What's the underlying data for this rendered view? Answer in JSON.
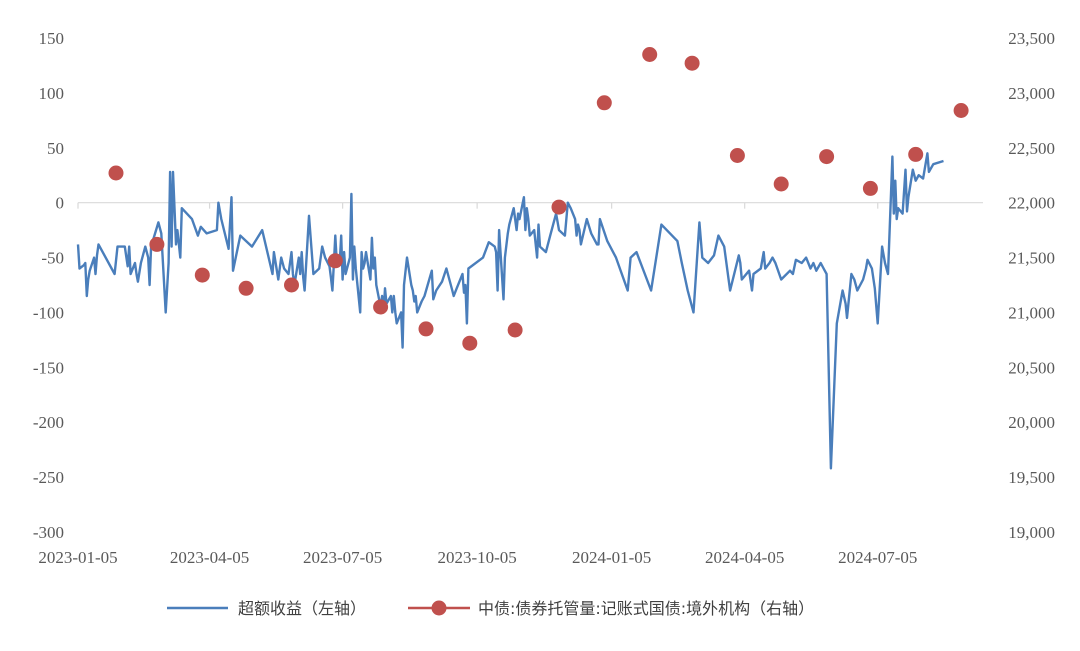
{
  "chart_data": {
    "type": "line",
    "title": "",
    "xlabel": "",
    "ylabel": "",
    "y2label": "",
    "grid": false,
    "legend_position": "bottom",
    "x_range": [
      "2023-01-05",
      "2024-09-15"
    ],
    "x_tick_labels": [
      "2023-01-05",
      "2023-04-05",
      "2023-07-05",
      "2023-10-05",
      "2024-01-05",
      "2024-04-05",
      "2024-07-05"
    ],
    "y_left": {
      "range": [
        -300,
        150
      ],
      "ticks": [
        150,
        100,
        50,
        0,
        -50,
        -100,
        -150,
        -200,
        -250,
        -300
      ],
      "tick_labels": [
        "150",
        "100",
        "50",
        "0",
        "-50",
        "-100",
        "-150",
        "-200",
        "-250",
        "-300"
      ]
    },
    "y_right": {
      "range": [
        19000,
        23500
      ],
      "ticks": [
        23500,
        23000,
        22500,
        22000,
        21500,
        21000,
        20500,
        20000,
        19500,
        19000
      ],
      "tick_labels": [
        "23,500",
        "23,000",
        "22,500",
        "22,000",
        "21,500",
        "21,000",
        "20,500",
        "20,000",
        "19,500",
        "19,000"
      ]
    },
    "series": [
      {
        "name": "超额收益（左轴）",
        "axis": "left",
        "kind": "line",
        "color": "#4a7ebb",
        "points": [
          [
            "2023-01-05",
            -38
          ],
          [
            "2023-01-06",
            -60
          ],
          [
            "2023-01-09",
            -57
          ],
          [
            "2023-01-10",
            -55
          ],
          [
            "2023-01-11",
            -85
          ],
          [
            "2023-01-12",
            -70
          ],
          [
            "2023-01-13",
            -62
          ],
          [
            "2023-01-16",
            -50
          ],
          [
            "2023-01-17",
            -65
          ],
          [
            "2023-01-18",
            -48
          ],
          [
            "2023-01-19",
            -38
          ],
          [
            "2023-01-30",
            -65
          ],
          [
            "2023-02-01",
            -40
          ],
          [
            "2023-02-06",
            -40
          ],
          [
            "2023-02-08",
            -58
          ],
          [
            "2023-02-09",
            -40
          ],
          [
            "2023-02-10",
            -65
          ],
          [
            "2023-02-13",
            -55
          ],
          [
            "2023-02-14",
            -65
          ],
          [
            "2023-02-15",
            -72
          ],
          [
            "2023-02-17",
            -55
          ],
          [
            "2023-02-20",
            -40
          ],
          [
            "2023-02-22",
            -50
          ],
          [
            "2023-02-23",
            -75
          ],
          [
            "2023-02-24",
            -40
          ],
          [
            "2023-03-01",
            -18
          ],
          [
            "2023-03-03",
            -28
          ],
          [
            "2023-03-06",
            -100
          ],
          [
            "2023-03-08",
            -55
          ],
          [
            "2023-03-09",
            28
          ],
          [
            "2023-03-10",
            -40
          ],
          [
            "2023-03-11",
            28
          ],
          [
            "2023-03-13",
            -38
          ],
          [
            "2023-03-14",
            -25
          ],
          [
            "2023-03-16",
            -50
          ],
          [
            "2023-03-17",
            -5
          ],
          [
            "2023-03-24",
            -15
          ],
          [
            "2023-03-28",
            -30
          ],
          [
            "2023-03-30",
            -22
          ],
          [
            "2023-04-03",
            -28
          ],
          [
            "2023-04-10",
            -25
          ],
          [
            "2023-04-11",
            0
          ],
          [
            "2023-04-13",
            -15
          ],
          [
            "2023-04-18",
            -42
          ],
          [
            "2023-04-20",
            5
          ],
          [
            "2023-04-21",
            -62
          ],
          [
            "2023-04-26",
            -30
          ],
          [
            "2023-05-04",
            -40
          ],
          [
            "2023-05-11",
            -25
          ],
          [
            "2023-05-18",
            -65
          ],
          [
            "2023-05-19",
            -45
          ],
          [
            "2023-05-22",
            -70
          ],
          [
            "2023-05-24",
            -50
          ],
          [
            "2023-05-26",
            -60
          ],
          [
            "2023-05-29",
            -65
          ],
          [
            "2023-05-31",
            -45
          ],
          [
            "2023-06-01",
            -65
          ],
          [
            "2023-06-02",
            -75
          ],
          [
            "2023-06-05",
            -50
          ],
          [
            "2023-06-06",
            -65
          ],
          [
            "2023-06-07",
            -45
          ],
          [
            "2023-06-08",
            -68
          ],
          [
            "2023-06-09",
            -80
          ],
          [
            "2023-06-12",
            -12
          ],
          [
            "2023-06-15",
            -65
          ],
          [
            "2023-06-19",
            -60
          ],
          [
            "2023-06-21",
            -40
          ],
          [
            "2023-06-23",
            -50
          ],
          [
            "2023-06-26",
            -58
          ],
          [
            "2023-06-27",
            -68
          ],
          [
            "2023-06-28",
            -80
          ],
          [
            "2023-06-29",
            -55
          ],
          [
            "2023-06-30",
            -30
          ],
          [
            "2023-07-01",
            -55
          ],
          [
            "2023-07-03",
            -55
          ],
          [
            "2023-07-04",
            -30
          ],
          [
            "2023-07-05",
            -70
          ],
          [
            "2023-07-06",
            -45
          ],
          [
            "2023-07-07",
            -65
          ],
          [
            "2023-07-10",
            -50
          ],
          [
            "2023-07-11",
            8
          ],
          [
            "2023-07-12",
            -70
          ],
          [
            "2023-07-13",
            -40
          ],
          [
            "2023-07-14",
            -60
          ],
          [
            "2023-07-17",
            -100
          ],
          [
            "2023-07-18",
            -45
          ],
          [
            "2023-07-19",
            -60
          ],
          [
            "2023-07-20",
            -55
          ],
          [
            "2023-07-21",
            -45
          ],
          [
            "2023-07-24",
            -70
          ],
          [
            "2023-07-25",
            -32
          ],
          [
            "2023-07-26",
            -60
          ],
          [
            "2023-07-27",
            -50
          ],
          [
            "2023-07-28",
            -75
          ],
          [
            "2023-07-31",
            -95
          ],
          [
            "2023-08-01",
            -85
          ],
          [
            "2023-08-02",
            -100
          ],
          [
            "2023-08-03",
            -78
          ],
          [
            "2023-08-04",
            -92
          ],
          [
            "2023-08-07",
            -85
          ],
          [
            "2023-08-08",
            -100
          ],
          [
            "2023-08-09",
            -85
          ],
          [
            "2023-08-10",
            -100
          ],
          [
            "2023-08-11",
            -110
          ],
          [
            "2023-08-14",
            -100
          ],
          [
            "2023-08-15",
            -132
          ],
          [
            "2023-08-16",
            -75
          ],
          [
            "2023-08-18",
            -50
          ],
          [
            "2023-08-21",
            -75
          ],
          [
            "2023-08-22",
            -80
          ],
          [
            "2023-08-23",
            -90
          ],
          [
            "2023-08-24",
            -85
          ],
          [
            "2023-08-25",
            -100
          ],
          [
            "2023-08-28",
            -90
          ],
          [
            "2023-08-30",
            -85
          ],
          [
            "2023-09-04",
            -62
          ],
          [
            "2023-09-05",
            -88
          ],
          [
            "2023-09-07",
            -80
          ],
          [
            "2023-09-11",
            -72
          ],
          [
            "2023-09-14",
            -60
          ],
          [
            "2023-09-18",
            -80
          ],
          [
            "2023-09-19",
            -85
          ],
          [
            "2023-09-21",
            -78
          ],
          [
            "2023-09-25",
            -65
          ],
          [
            "2023-09-26",
            -82
          ],
          [
            "2023-09-27",
            -75
          ],
          [
            "2023-09-28",
            -110
          ],
          [
            "2023-09-29",
            -60
          ],
          [
            "2023-10-09",
            -50
          ],
          [
            "2023-10-13",
            -36
          ],
          [
            "2023-10-17",
            -40
          ],
          [
            "2023-10-18",
            -45
          ],
          [
            "2023-10-19",
            -80
          ],
          [
            "2023-10-20",
            -25
          ],
          [
            "2023-10-23",
            -88
          ],
          [
            "2023-10-24",
            -50
          ],
          [
            "2023-10-26",
            -28
          ],
          [
            "2023-10-27",
            -20
          ],
          [
            "2023-10-30",
            -5
          ],
          [
            "2023-11-01",
            -25
          ],
          [
            "2023-11-02",
            -10
          ],
          [
            "2023-11-03",
            -15
          ],
          [
            "2023-11-06",
            5
          ],
          [
            "2023-11-07",
            -25
          ],
          [
            "2023-11-08",
            -5
          ],
          [
            "2023-11-09",
            -15
          ],
          [
            "2023-11-10",
            -30
          ],
          [
            "2023-11-13",
            -25
          ],
          [
            "2023-11-15",
            -50
          ],
          [
            "2023-11-16",
            -20
          ],
          [
            "2023-11-17",
            -40
          ],
          [
            "2023-11-21",
            -45
          ],
          [
            "2023-11-24",
            -30
          ],
          [
            "2023-11-28",
            -10
          ],
          [
            "2023-11-30",
            -25
          ],
          [
            "2023-12-04",
            -30
          ],
          [
            "2023-12-06",
            0
          ],
          [
            "2023-12-08",
            -5
          ],
          [
            "2023-12-11",
            -15
          ],
          [
            "2023-12-12",
            -30
          ],
          [
            "2023-12-13",
            -20
          ],
          [
            "2023-12-14",
            -25
          ],
          [
            "2023-12-15",
            -38
          ],
          [
            "2023-12-19",
            -15
          ],
          [
            "2023-12-22",
            -28
          ],
          [
            "2023-12-26",
            -38
          ],
          [
            "2023-12-27",
            -38
          ],
          [
            "2023-12-28",
            -15
          ],
          [
            "2024-01-02",
            -35
          ],
          [
            "2024-01-08",
            -50
          ],
          [
            "2024-01-16",
            -80
          ],
          [
            "2024-01-18",
            -50
          ],
          [
            "2024-01-22",
            -45
          ],
          [
            "2024-02-01",
            -80
          ],
          [
            "2024-02-08",
            -20
          ],
          [
            "2024-02-19",
            -35
          ],
          [
            "2024-02-22",
            -55
          ],
          [
            "2024-02-26",
            -80
          ],
          [
            "2024-03-01",
            -100
          ],
          [
            "2024-03-05",
            -18
          ],
          [
            "2024-03-07",
            -50
          ],
          [
            "2024-03-11",
            -55
          ],
          [
            "2024-03-15",
            -48
          ],
          [
            "2024-03-18",
            -30
          ],
          [
            "2024-03-22",
            -40
          ],
          [
            "2024-03-25",
            -70
          ],
          [
            "2024-03-26",
            -80
          ],
          [
            "2024-04-01",
            -48
          ],
          [
            "2024-04-02",
            -55
          ],
          [
            "2024-04-03",
            -70
          ],
          [
            "2024-04-08",
            -62
          ],
          [
            "2024-04-10",
            -80
          ],
          [
            "2024-04-11",
            -65
          ],
          [
            "2024-04-16",
            -60
          ],
          [
            "2024-04-18",
            -45
          ],
          [
            "2024-04-19",
            -60
          ],
          [
            "2024-04-22",
            -55
          ],
          [
            "2024-04-24",
            -50
          ],
          [
            "2024-04-26",
            -55
          ],
          [
            "2024-04-30",
            -70
          ],
          [
            "2024-05-06",
            -62
          ],
          [
            "2024-05-08",
            -65
          ],
          [
            "2024-05-10",
            -52
          ],
          [
            "2024-05-14",
            -55
          ],
          [
            "2024-05-17",
            -50
          ],
          [
            "2024-05-20",
            -60
          ],
          [
            "2024-05-22",
            -55
          ],
          [
            "2024-05-24",
            -62
          ],
          [
            "2024-05-27",
            -55
          ],
          [
            "2024-05-29",
            -60
          ],
          [
            "2024-05-31",
            -65
          ],
          [
            "2024-06-03",
            -242
          ],
          [
            "2024-06-07",
            -110
          ],
          [
            "2024-06-11",
            -80
          ],
          [
            "2024-06-13",
            -92
          ],
          [
            "2024-06-14",
            -105
          ],
          [
            "2024-06-17",
            -65
          ],
          [
            "2024-06-19",
            -70
          ],
          [
            "2024-06-21",
            -80
          ],
          [
            "2024-06-25",
            -70
          ],
          [
            "2024-06-27",
            -60
          ],
          [
            "2024-06-28",
            -52
          ],
          [
            "2024-07-01",
            -60
          ],
          [
            "2024-07-03",
            -78
          ],
          [
            "2024-07-05",
            -110
          ],
          [
            "2024-07-08",
            -40
          ],
          [
            "2024-07-10",
            -55
          ],
          [
            "2024-07-12",
            -65
          ],
          [
            "2024-07-15",
            42
          ],
          [
            "2024-07-16",
            -10
          ],
          [
            "2024-07-17",
            20
          ],
          [
            "2024-07-18",
            -15
          ],
          [
            "2024-07-19",
            -5
          ],
          [
            "2024-07-22",
            -10
          ],
          [
            "2024-07-24",
            30
          ],
          [
            "2024-07-25",
            -8
          ],
          [
            "2024-07-26",
            5
          ],
          [
            "2024-07-29",
            30
          ],
          [
            "2024-07-31",
            20
          ],
          [
            "2024-08-02",
            25
          ],
          [
            "2024-08-05",
            22
          ],
          [
            "2024-08-08",
            45
          ],
          [
            "2024-08-09",
            28
          ],
          [
            "2024-08-12",
            35
          ],
          [
            "2024-08-19",
            38
          ]
        ]
      },
      {
        "name": "中债:债券托管量:记账式国债:境外机构（右轴）",
        "axis": "right",
        "kind": "scatter",
        "color": "#c0504d",
        "points": [
          [
            "2023-01-31",
            22270
          ],
          [
            "2023-02-28",
            21620
          ],
          [
            "2023-03-31",
            21340
          ],
          [
            "2023-04-30",
            21220
          ],
          [
            "2023-05-31",
            21250
          ],
          [
            "2023-06-30",
            21470
          ],
          [
            "2023-07-31",
            21050
          ],
          [
            "2023-08-31",
            20850
          ],
          [
            "2023-09-30",
            20720
          ],
          [
            "2023-10-31",
            20840
          ],
          [
            "2023-11-30",
            21960
          ],
          [
            "2023-12-31",
            22910
          ],
          [
            "2024-01-31",
            23350
          ],
          [
            "2024-02-29",
            23270
          ],
          [
            "2024-03-31",
            22430
          ],
          [
            "2024-04-30",
            22170
          ],
          [
            "2024-05-31",
            22420
          ],
          [
            "2024-06-30",
            22130
          ],
          [
            "2024-07-31",
            22440
          ],
          [
            "2024-08-31",
            22840
          ]
        ]
      }
    ]
  }
}
